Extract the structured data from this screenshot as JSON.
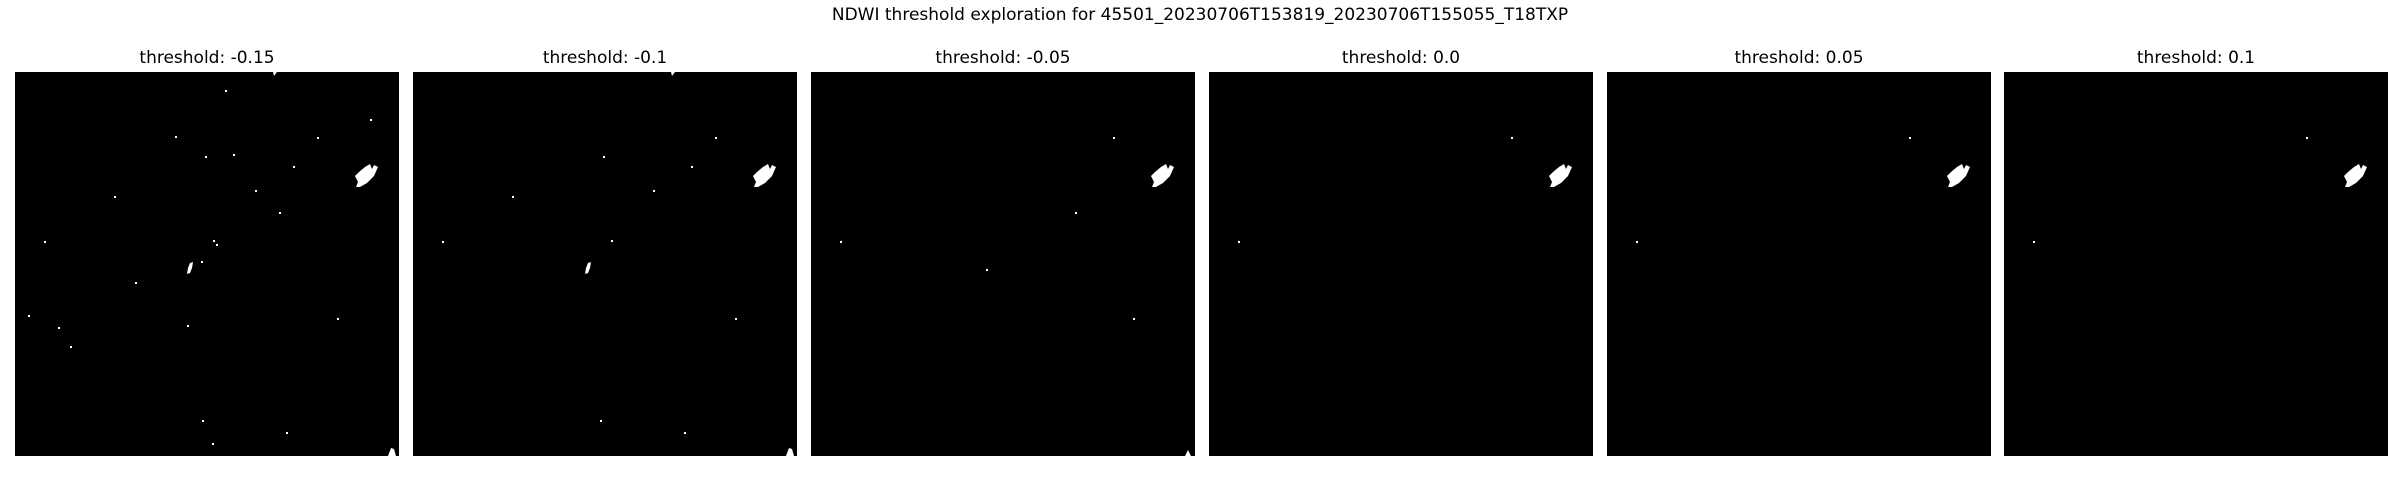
{
  "figure": {
    "title": "NDWI threshold exploration for 45501_20230706T153819_20230706T155055_T18TXP"
  },
  "colors": {
    "water": "#ffffff",
    "background": "#000000"
  },
  "panels": [
    {
      "title": "threshold: -0.15",
      "threshold": -0.15
    },
    {
      "title": "threshold: -0.1",
      "threshold": -0.1
    },
    {
      "title": "threshold: -0.05",
      "threshold": -0.05
    },
    {
      "title": "threshold: 0.0",
      "threshold": 0.0
    },
    {
      "title": "threshold: 0.05",
      "threshold": 0.05
    },
    {
      "title": "threshold: 0.1",
      "threshold": 0.1
    }
  ]
}
